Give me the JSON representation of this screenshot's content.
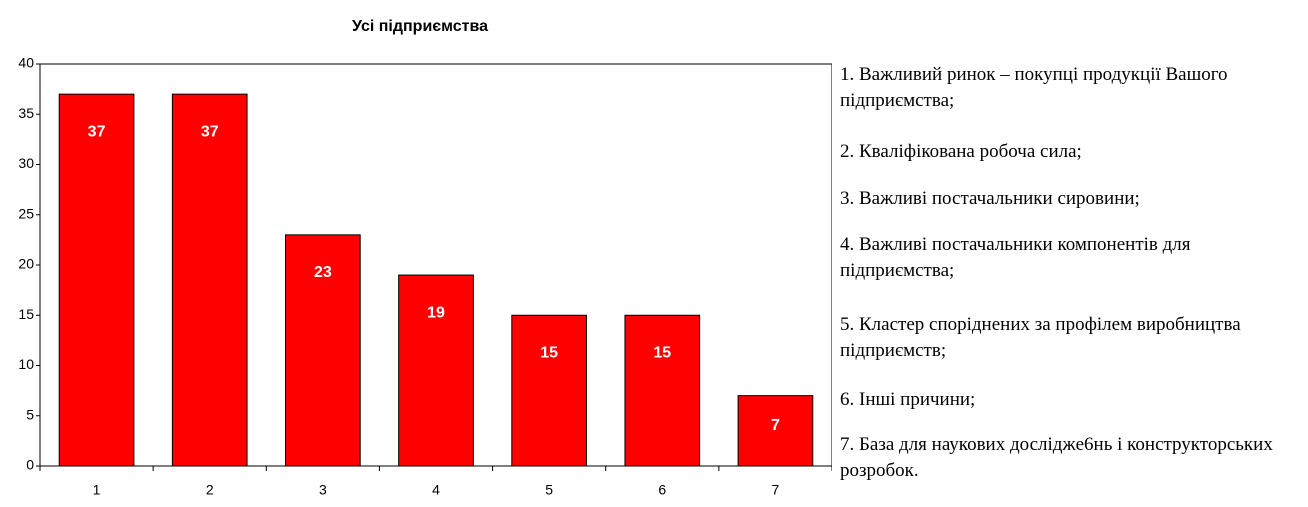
{
  "chart_data": {
    "type": "bar",
    "title": "Усі підприємства",
    "categories": [
      "1",
      "2",
      "3",
      "4",
      "5",
      "6",
      "7"
    ],
    "values": [
      37,
      37,
      23,
      19,
      15,
      15,
      7
    ],
    "color": "#ff0000",
    "ylim": [
      0,
      40
    ],
    "yticks": [
      0,
      5,
      10,
      15,
      20,
      25,
      30,
      35,
      40
    ],
    "grid": false,
    "notes": [
      "1. Важливий ринок – покупці продукції Вашого підприємства;",
      "2. Кваліфікована робоча сила;",
      "3. Важливі постачальники сировини;",
      "4. Важливі постачальники компонентів для підприємства;",
      "5. Кластер споріднених за профілем виробництва підприємств;",
      "6. Інші причини;",
      "7. База для наукових досліджe6нь і конструкторських розробок."
    ]
  }
}
